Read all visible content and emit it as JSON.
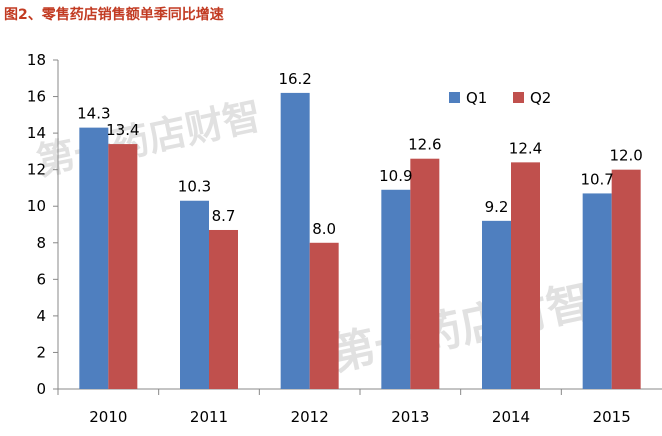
{
  "figure_title": "图2、零售药店销售额单季同比增速",
  "watermark_text": "第一药店财智",
  "colors": {
    "title": "#c23b22",
    "q1": "#4f7fbf",
    "q2": "#c0504d",
    "axis": "#888888",
    "text": "#000000",
    "watermark": "#bdbdbd"
  },
  "chart_data": {
    "type": "bar",
    "title": "",
    "xlabel": "",
    "ylabel": "",
    "categories": [
      "2010",
      "2011",
      "2012",
      "2013",
      "2014",
      "2015"
    ],
    "series": [
      {
        "name": "Q1",
        "values": [
          14.3,
          10.3,
          16.2,
          10.9,
          9.2,
          10.7
        ],
        "labels": [
          "14.3",
          "10.3",
          "16.2",
          "10.9",
          "9.2",
          "10.7"
        ]
      },
      {
        "name": "Q2",
        "values": [
          13.4,
          8.7,
          8.0,
          12.6,
          12.4,
          12.0
        ],
        "labels": [
          "13.4",
          "8.7",
          "8.0",
          "12.6",
          "12.4",
          "12.0"
        ]
      }
    ],
    "ylim": [
      0,
      18
    ],
    "yticks": [
      "0",
      "2",
      "4",
      "6",
      "8",
      "10",
      "12",
      "14",
      "16",
      "18"
    ],
    "grid": false,
    "legend": "top-right"
  }
}
